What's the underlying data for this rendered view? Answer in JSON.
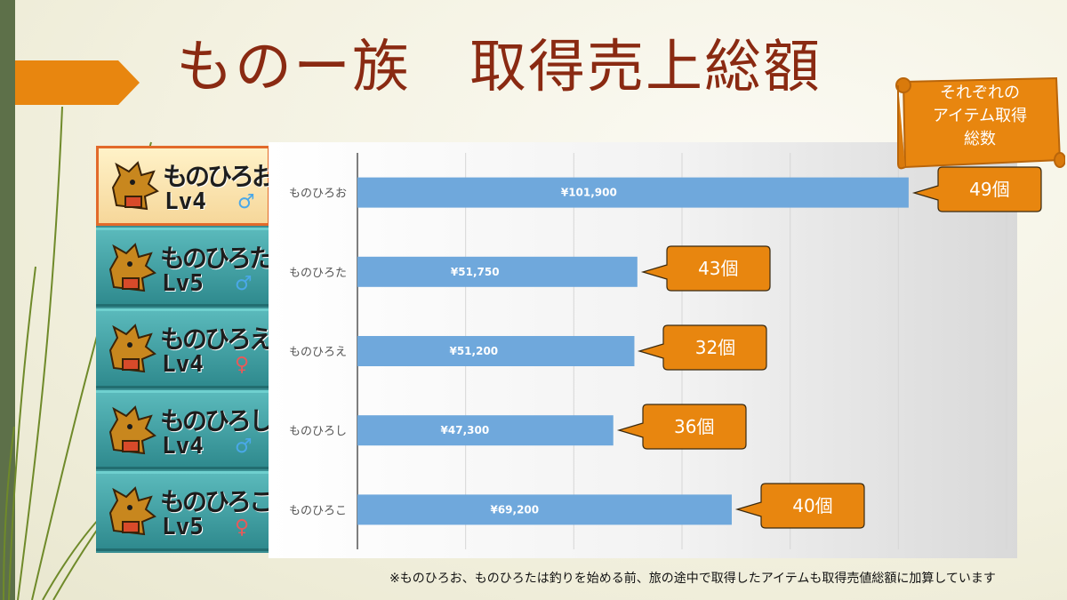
{
  "slide": {
    "title": "ものー族　取得売上総額",
    "footnote": "※ものひろお、ものひろたは釣りを始める前、旅の途中で取得したアイテムも取得売値総額に加算しています",
    "note_box": {
      "lines": [
        "それぞれの",
        "アイテム取得",
        "総数"
      ]
    },
    "colors": {
      "title": "#8a2a12",
      "accent": "#e8860f",
      "bar": "#6fa8dc",
      "side_bar": "#5d7049"
    }
  },
  "sprites": [
    {
      "name": "ものひろお",
      "level": "Lv4",
      "gender": "♂",
      "gender_color": "#4aa8e8"
    },
    {
      "name": "ものひろた",
      "level": "Lv5",
      "gender": "♂",
      "gender_color": "#4aa8e8"
    },
    {
      "name": "ものひろえ",
      "level": "Lv4",
      "gender": "♀",
      "gender_color": "#e85a5a"
    },
    {
      "name": "ものひろし",
      "level": "Lv4",
      "gender": "♂",
      "gender_color": "#4aa8e8"
    },
    {
      "name": "ものひろこ",
      "level": "Lv5",
      "gender": "♀",
      "gender_color": "#e85a5a"
    }
  ],
  "chart_data": {
    "type": "bar",
    "orientation": "horizontal",
    "categories": [
      "ものひろお",
      "ものひろた",
      "ものひろえ",
      "ものひろし",
      "ものひろこ"
    ],
    "values": [
      101900,
      51750,
      51200,
      47300,
      69200
    ],
    "value_labels": [
      "¥101,900",
      "¥51,750",
      "¥51,200",
      "¥47,300",
      "¥69,200"
    ],
    "item_counts": [
      "49個",
      "43個",
      "32個",
      "36個",
      "40個"
    ],
    "xlim": [
      0,
      120000
    ],
    "x_gridline_step": 20000,
    "tick_labels_shown": false,
    "grid": true,
    "bar_color": "#6fa8dc",
    "title": "",
    "xlabel": "",
    "ylabel": ""
  }
}
